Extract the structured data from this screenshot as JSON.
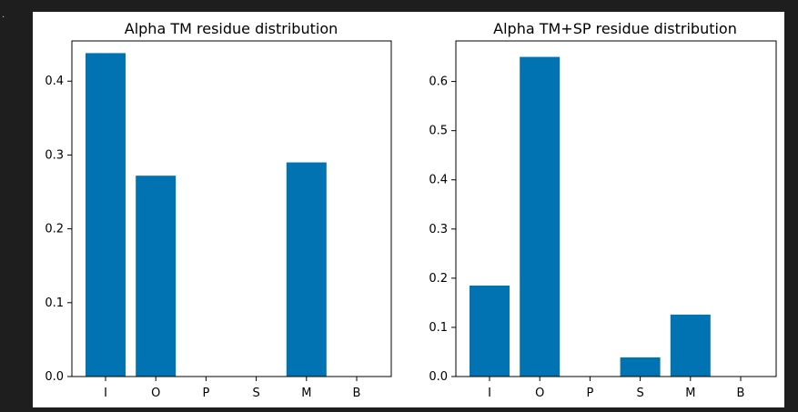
{
  "chart_data": [
    {
      "type": "bar",
      "title": "Alpha TM residue distribution",
      "categories": [
        "I",
        "O",
        "P",
        "S",
        "M",
        "B"
      ],
      "values": [
        0.438,
        0.272,
        0.0,
        0.0,
        0.29,
        0.0
      ],
      "ylim": [
        0,
        0.4545
      ],
      "yticks": [
        "0.0",
        "0.1",
        "0.2",
        "0.3",
        "0.4"
      ],
      "color": "#0173b2"
    },
    {
      "type": "bar",
      "title": "Alpha TM+SP residue distribution",
      "categories": [
        "I",
        "O",
        "P",
        "S",
        "M",
        "B"
      ],
      "values": [
        0.185,
        0.65,
        0.0,
        0.039,
        0.126,
        0.0
      ],
      "ylim": [
        0,
        0.6825
      ],
      "yticks": [
        "0.0",
        "0.1",
        "0.2",
        "0.3",
        "0.4",
        "0.5",
        "0.6"
      ],
      "color": "#0173b2"
    }
  ]
}
